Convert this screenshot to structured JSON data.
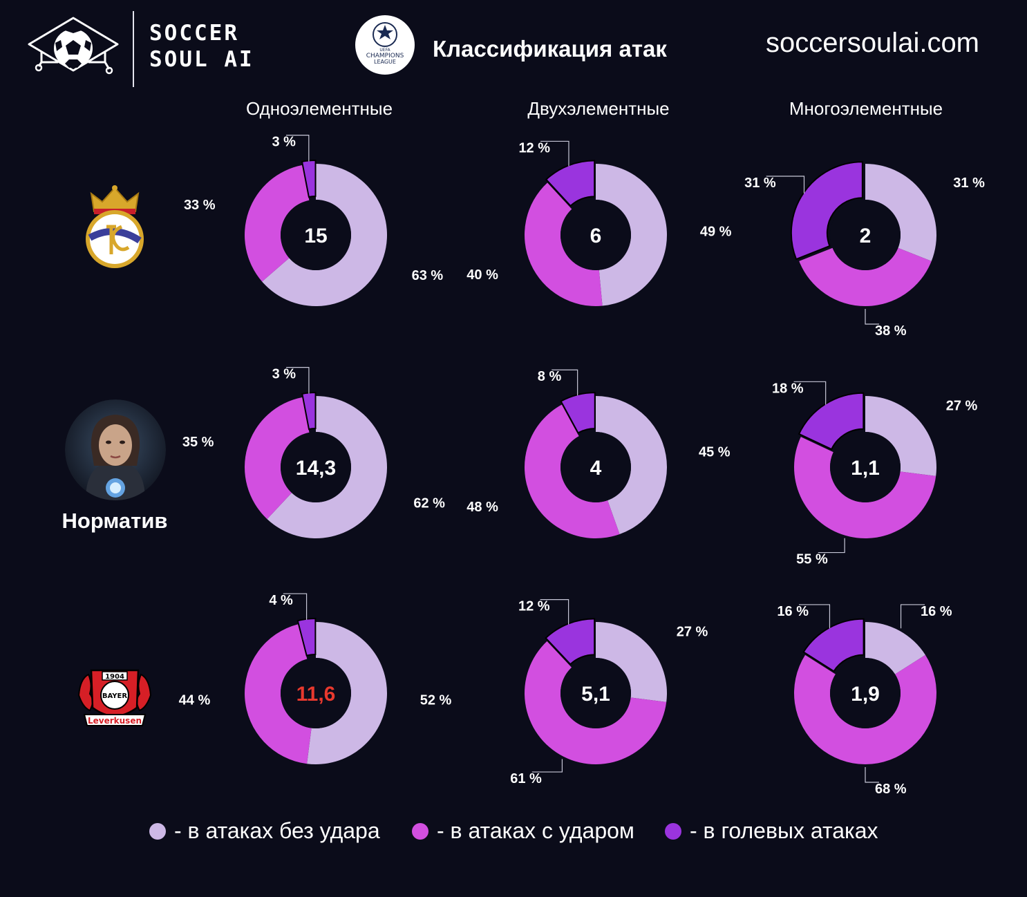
{
  "brand": {
    "line1": "SOCCER",
    "line2": "SOUL AI",
    "site": "soccersoulai.com"
  },
  "header": {
    "title": "Классификация атак",
    "ucl_logo_text": [
      "UEFA",
      "CHAMPIONS",
      "LEAGUE"
    ]
  },
  "columns": [
    "Одноэлементные",
    "Двухэлементные",
    "Многоэлементные"
  ],
  "rows": [
    {
      "team": "Real Madrid",
      "logo_icon": "real-madrid-crest-icon",
      "label": ""
    },
    {
      "team": "Норматив",
      "logo_icon": "ai-avatar-icon",
      "label": "Норматив"
    },
    {
      "team": "Bayer Leverkusen",
      "logo_icon": "bayer-leverkusen-crest-icon",
      "label": "",
      "logo_text": {
        "year": "1904",
        "name": "BAYER",
        "club": "Leverkusen"
      }
    }
  ],
  "colors": {
    "no_shot": "#cdb8e6",
    "shot": "#d24fe0",
    "goal": "#9a34de",
    "background": "#0b0c1a",
    "highlight": "#e8392e"
  },
  "legend": [
    {
      "key": "no_shot",
      "label": "- в атаках без удара"
    },
    {
      "key": "shot",
      "label": "- в атаках с ударом"
    },
    {
      "key": "goal",
      "label": "- в голевых атаках"
    }
  ],
  "chart_data": [
    {
      "type": "pie",
      "row": "Real Madrid",
      "column": "Одноэлементные",
      "center": "15",
      "center_highlight": false,
      "slices": [
        {
          "series": "no_shot",
          "value": 63,
          "label": "63 %"
        },
        {
          "series": "shot",
          "value": 33,
          "label": "33 %"
        },
        {
          "series": "goal",
          "value": 3,
          "label": "3 %"
        }
      ]
    },
    {
      "type": "pie",
      "row": "Real Madrid",
      "column": "Двухэлементные",
      "center": "6",
      "center_highlight": false,
      "slices": [
        {
          "series": "no_shot",
          "value": 49,
          "label": "49 %"
        },
        {
          "series": "shot",
          "value": 40,
          "label": "40 %"
        },
        {
          "series": "goal",
          "value": 12,
          "label": "12 %"
        }
      ]
    },
    {
      "type": "pie",
      "row": "Real Madrid",
      "column": "Многоэлементные",
      "center": "2",
      "center_highlight": false,
      "slices": [
        {
          "series": "no_shot",
          "value": 31,
          "label": "31 %"
        },
        {
          "series": "shot",
          "value": 38,
          "label": "38 %"
        },
        {
          "series": "goal",
          "value": 31,
          "label": "31 %"
        }
      ]
    },
    {
      "type": "pie",
      "row": "Норматив",
      "column": "Одноэлементные",
      "center": "14,3",
      "center_highlight": false,
      "slices": [
        {
          "series": "no_shot",
          "value": 62,
          "label": "62 %"
        },
        {
          "series": "shot",
          "value": 35,
          "label": "35 %"
        },
        {
          "series": "goal",
          "value": 3,
          "label": "3 %"
        }
      ]
    },
    {
      "type": "pie",
      "row": "Норматив",
      "column": "Двухэлементные",
      "center": "4",
      "center_highlight": false,
      "slices": [
        {
          "series": "no_shot",
          "value": 45,
          "label": "45 %"
        },
        {
          "series": "shot",
          "value": 48,
          "label": "48 %"
        },
        {
          "series": "goal",
          "value": 8,
          "label": "8 %"
        }
      ]
    },
    {
      "type": "pie",
      "row": "Норматив",
      "column": "Многоэлементные",
      "center": "1,1",
      "center_highlight": false,
      "slices": [
        {
          "series": "no_shot",
          "value": 27,
          "label": "27 %"
        },
        {
          "series": "shot",
          "value": 55,
          "label": "55 %"
        },
        {
          "series": "goal",
          "value": 18,
          "label": "18 %"
        }
      ]
    },
    {
      "type": "pie",
      "row": "Bayer Leverkusen",
      "column": "Одноэлементные",
      "center": "11,6",
      "center_highlight": true,
      "slices": [
        {
          "series": "no_shot",
          "value": 52,
          "label": "52 %"
        },
        {
          "series": "shot",
          "value": 44,
          "label": "44 %"
        },
        {
          "series": "goal",
          "value": 4,
          "label": "4 %"
        }
      ]
    },
    {
      "type": "pie",
      "row": "Bayer Leverkusen",
      "column": "Двухэлементные",
      "center": "5,1",
      "center_highlight": false,
      "slices": [
        {
          "series": "no_shot",
          "value": 27,
          "label": "27 %"
        },
        {
          "series": "shot",
          "value": 61,
          "label": "61 %"
        },
        {
          "series": "goal",
          "value": 12,
          "label": "12 %"
        }
      ]
    },
    {
      "type": "pie",
      "row": "Bayer Leverkusen",
      "column": "Многоэлементные",
      "center": "1,9",
      "center_highlight": false,
      "slices": [
        {
          "series": "no_shot",
          "value": 16,
          "label": "16 %"
        },
        {
          "series": "shot",
          "value": 68,
          "label": "68 %"
        },
        {
          "series": "goal",
          "value": 16,
          "label": "16 %"
        }
      ]
    }
  ]
}
